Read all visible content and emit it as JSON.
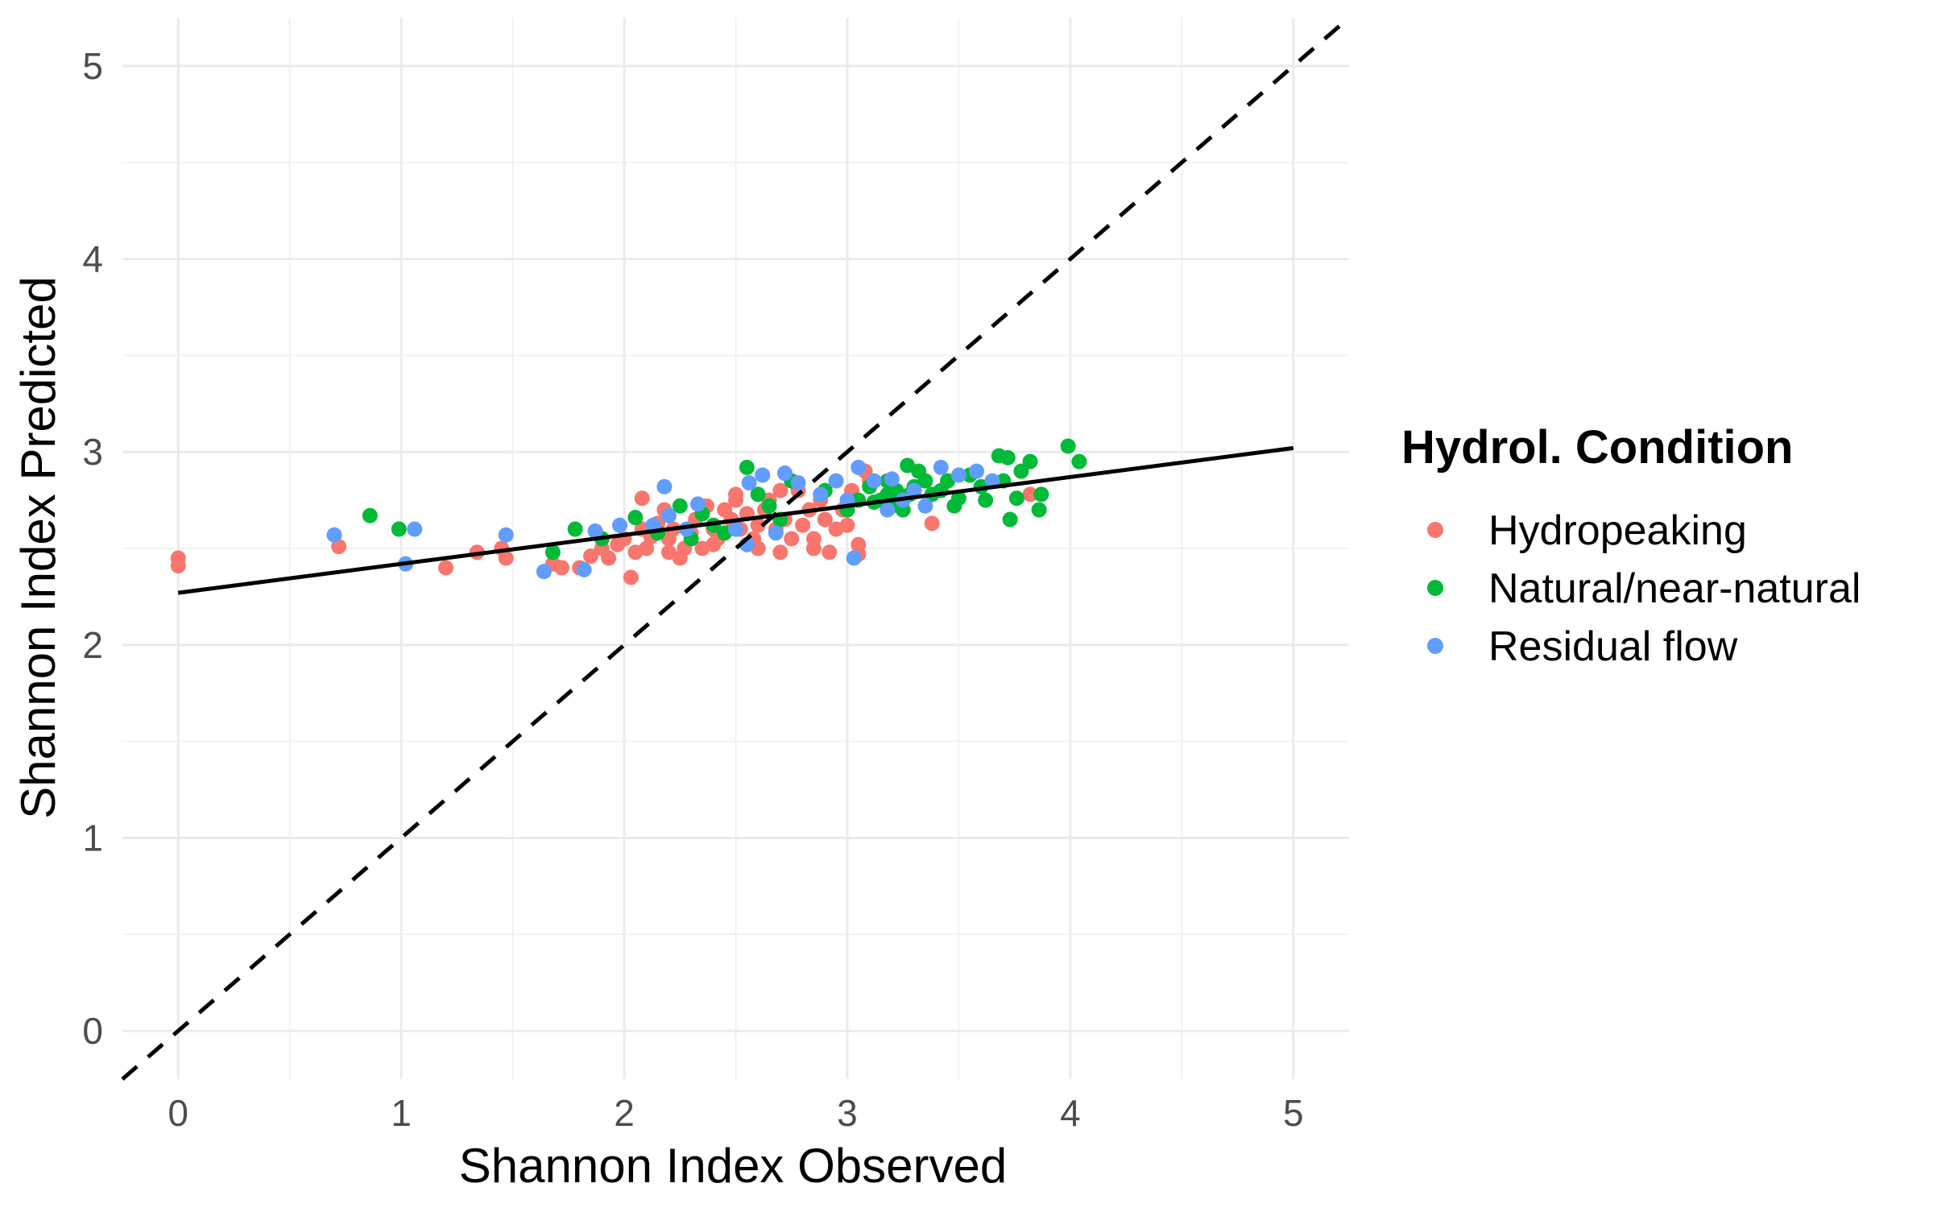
{
  "chart_data": {
    "type": "scatter",
    "title": "",
    "xlabel": "Shannon Index Observed",
    "ylabel": "Shannon Index Predicted",
    "xlim": [
      -0.25,
      5.25
    ],
    "ylim": [
      -0.25,
      5.25
    ],
    "x_ticks": [
      0,
      1,
      2,
      3,
      4,
      5
    ],
    "y_ticks": [
      0,
      1,
      2,
      3,
      4,
      5
    ],
    "x_tick_labels": [
      "0",
      "1",
      "2",
      "3",
      "4",
      "5"
    ],
    "y_tick_labels": [
      "0",
      "1",
      "2",
      "3",
      "4",
      "5"
    ],
    "grid": true,
    "legend": {
      "title": "Hydrol. Condition",
      "position": "right"
    },
    "reference_line": {
      "style": "dashed",
      "color": "#000000",
      "slope": 1,
      "intercept": 0
    },
    "fit_line": {
      "style": "solid",
      "color": "#000000",
      "x": [
        0,
        5
      ],
      "y": [
        2.27,
        3.02
      ]
    },
    "series": [
      {
        "name": "Hydropeaking",
        "color": "#F8766D",
        "points": [
          [
            0.0,
            2.45
          ],
          [
            0.0,
            2.41
          ],
          [
            0.72,
            2.51
          ],
          [
            1.2,
            2.4
          ],
          [
            1.34,
            2.48
          ],
          [
            1.45,
            2.5
          ],
          [
            1.47,
            2.45
          ],
          [
            1.68,
            2.42
          ],
          [
            1.72,
            2.4
          ],
          [
            1.8,
            2.4
          ],
          [
            1.85,
            2.46
          ],
          [
            1.9,
            2.5
          ],
          [
            1.93,
            2.45
          ],
          [
            1.97,
            2.52
          ],
          [
            2.0,
            2.55
          ],
          [
            2.03,
            2.35
          ],
          [
            2.05,
            2.48
          ],
          [
            2.08,
            2.6
          ],
          [
            2.1,
            2.5
          ],
          [
            2.12,
            2.56
          ],
          [
            2.15,
            2.63
          ],
          [
            2.18,
            2.7
          ],
          [
            2.2,
            2.55
          ],
          [
            2.22,
            2.6
          ],
          [
            2.25,
            2.45
          ],
          [
            2.27,
            2.5
          ],
          [
            2.3,
            2.58
          ],
          [
            2.32,
            2.65
          ],
          [
            2.35,
            2.5
          ],
          [
            2.37,
            2.72
          ],
          [
            2.4,
            2.6
          ],
          [
            2.42,
            2.55
          ],
          [
            2.45,
            2.7
          ],
          [
            2.48,
            2.65
          ],
          [
            2.5,
            2.75
          ],
          [
            2.52,
            2.6
          ],
          [
            2.55,
            2.68
          ],
          [
            2.58,
            2.55
          ],
          [
            2.6,
            2.62
          ],
          [
            2.63,
            2.7
          ],
          [
            2.65,
            2.75
          ],
          [
            2.68,
            2.6
          ],
          [
            2.7,
            2.48
          ],
          [
            2.72,
            2.65
          ],
          [
            2.75,
            2.55
          ],
          [
            2.78,
            2.8
          ],
          [
            2.8,
            2.62
          ],
          [
            2.83,
            2.7
          ],
          [
            2.85,
            2.55
          ],
          [
            2.88,
            2.75
          ],
          [
            2.9,
            2.65
          ],
          [
            2.92,
            2.48
          ],
          [
            2.95,
            2.6
          ],
          [
            2.98,
            2.7
          ],
          [
            3.0,
            2.62
          ],
          [
            3.02,
            2.8
          ],
          [
            3.05,
            2.52
          ],
          [
            3.08,
            2.9
          ],
          [
            3.1,
            2.85
          ],
          [
            2.08,
            2.76
          ],
          [
            2.5,
            2.78
          ],
          [
            2.6,
            2.5
          ],
          [
            2.85,
            2.5
          ],
          [
            3.05,
            2.47
          ],
          [
            3.38,
            2.63
          ],
          [
            3.82,
            2.78
          ],
          [
            2.2,
            2.48
          ],
          [
            2.4,
            2.52
          ],
          [
            2.7,
            2.8
          ]
        ]
      },
      {
        "name": "Natural/near-natural",
        "color": "#00BA38",
        "points": [
          [
            0.86,
            2.67
          ],
          [
            0.99,
            2.6
          ],
          [
            1.68,
            2.48
          ],
          [
            1.78,
            2.6
          ],
          [
            1.9,
            2.55
          ],
          [
            2.05,
            2.66
          ],
          [
            2.15,
            2.58
          ],
          [
            2.25,
            2.72
          ],
          [
            2.3,
            2.55
          ],
          [
            2.35,
            2.68
          ],
          [
            2.4,
            2.62
          ],
          [
            2.45,
            2.58
          ],
          [
            2.55,
            2.92
          ],
          [
            2.6,
            2.78
          ],
          [
            2.65,
            2.72
          ],
          [
            2.7,
            2.65
          ],
          [
            2.75,
            2.85
          ],
          [
            2.9,
            2.8
          ],
          [
            3.0,
            2.7
          ],
          [
            3.05,
            2.75
          ],
          [
            3.1,
            2.82
          ],
          [
            3.15,
            2.75
          ],
          [
            3.18,
            2.85
          ],
          [
            3.2,
            2.72
          ],
          [
            3.22,
            2.8
          ],
          [
            3.25,
            2.7
          ],
          [
            3.27,
            2.93
          ],
          [
            3.3,
            2.82
          ],
          [
            3.32,
            2.9
          ],
          [
            3.35,
            2.85
          ],
          [
            3.38,
            2.78
          ],
          [
            3.42,
            2.8
          ],
          [
            3.45,
            2.85
          ],
          [
            3.48,
            2.72
          ],
          [
            3.5,
            2.76
          ],
          [
            3.55,
            2.88
          ],
          [
            3.6,
            2.82
          ],
          [
            3.62,
            2.75
          ],
          [
            3.68,
            2.98
          ],
          [
            3.7,
            2.85
          ],
          [
            3.72,
            2.97
          ],
          [
            3.73,
            2.65
          ],
          [
            3.76,
            2.76
          ],
          [
            3.78,
            2.9
          ],
          [
            3.82,
            2.95
          ],
          [
            3.86,
            2.7
          ],
          [
            3.87,
            2.78
          ],
          [
            3.99,
            3.03
          ],
          [
            4.04,
            2.95
          ],
          [
            3.12,
            2.74
          ],
          [
            3.18,
            2.78
          ],
          [
            3.28,
            2.78
          ]
        ]
      },
      {
        "name": "Residual flow",
        "color": "#619CFF",
        "points": [
          [
            0.7,
            2.57
          ],
          [
            1.02,
            2.42
          ],
          [
            1.06,
            2.6
          ],
          [
            1.47,
            2.57
          ],
          [
            1.64,
            2.38
          ],
          [
            1.82,
            2.39
          ],
          [
            1.87,
            2.59
          ],
          [
            1.98,
            2.62
          ],
          [
            2.13,
            2.62
          ],
          [
            2.18,
            2.82
          ],
          [
            2.2,
            2.67
          ],
          [
            2.28,
            2.6
          ],
          [
            2.33,
            2.73
          ],
          [
            2.5,
            2.6
          ],
          [
            2.55,
            2.52
          ],
          [
            2.56,
            2.84
          ],
          [
            2.62,
            2.88
          ],
          [
            2.68,
            2.58
          ],
          [
            2.72,
            2.89
          ],
          [
            2.78,
            2.84
          ],
          [
            2.88,
            2.78
          ],
          [
            2.95,
            2.85
          ],
          [
            3.0,
            2.75
          ],
          [
            3.03,
            2.45
          ],
          [
            3.05,
            2.92
          ],
          [
            3.12,
            2.85
          ],
          [
            3.18,
            2.7
          ],
          [
            3.25,
            2.75
          ],
          [
            3.35,
            2.72
          ],
          [
            3.42,
            2.92
          ],
          [
            3.5,
            2.88
          ],
          [
            3.58,
            2.9
          ],
          [
            3.65,
            2.85
          ],
          [
            3.2,
            2.86
          ],
          [
            3.3,
            2.8
          ]
        ]
      }
    ]
  }
}
